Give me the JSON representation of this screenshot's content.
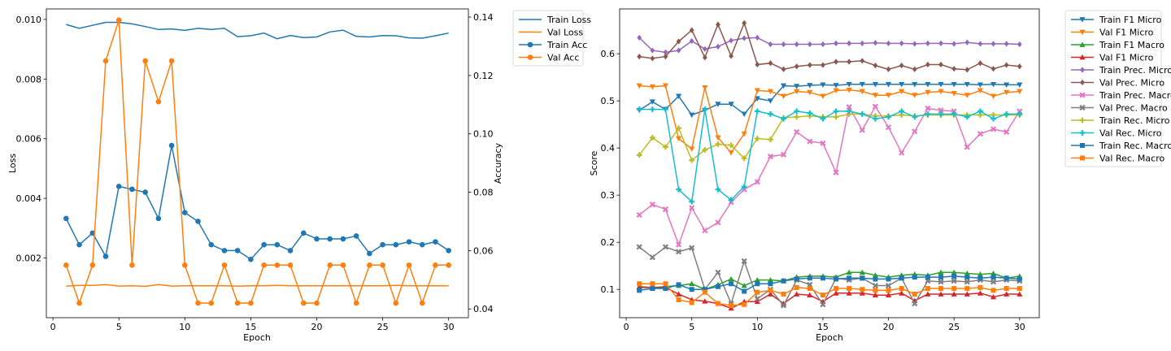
{
  "chart_data": [
    {
      "type": "line",
      "title": "",
      "xlabel": "Epoch",
      "ylabel_left": "Loss",
      "ylabel_right": "Accuracy",
      "xlim": [
        -0.5,
        31.5
      ],
      "ylim_left": [
        0.0,
        0.01035
      ],
      "ylim_right": [
        0.037,
        0.1428
      ],
      "x_ticks": [
        0,
        5,
        10,
        15,
        20,
        25,
        30
      ],
      "y_ticks_left": [
        "0.002",
        "0.004",
        "0.006",
        "0.008",
        "0.010"
      ],
      "y_tick_values_left": [
        0.002,
        0.004,
        0.006,
        0.008,
        0.01
      ],
      "y_ticks_right": [
        "0.04",
        "0.06",
        "0.08",
        "0.10",
        "0.12",
        "0.14"
      ],
      "y_tick_values_right": [
        0.04,
        0.06,
        0.08,
        0.1,
        0.12,
        0.14
      ],
      "legend_position": "outside-right",
      "x": [
        1,
        2,
        3,
        4,
        5,
        6,
        7,
        8,
        9,
        10,
        11,
        12,
        13,
        14,
        15,
        16,
        17,
        18,
        19,
        20,
        21,
        22,
        23,
        24,
        25,
        26,
        27,
        28,
        29,
        30
      ],
      "series": [
        {
          "name": "Train Loss",
          "axis": "left",
          "color": "#1f77b4",
          "marker": "none",
          "values": [
            0.00983,
            0.0097,
            0.0098,
            0.0099,
            0.0099,
            0.00985,
            0.00976,
            0.00966,
            0.00968,
            0.00963,
            0.0097,
            0.00966,
            0.0097,
            0.00942,
            0.00945,
            0.00954,
            0.00935,
            0.00946,
            0.00939,
            0.00941,
            0.00958,
            0.00964,
            0.00943,
            0.00941,
            0.00946,
            0.00945,
            0.00938,
            0.00937,
            0.00945,
            0.00954
          ]
        },
        {
          "name": "Val Loss",
          "axis": "left",
          "color": "#ff7f0e",
          "marker": "none",
          "values": [
            0.00106,
            0.00108,
            0.00108,
            0.00111,
            0.00106,
            0.00107,
            0.00105,
            0.00111,
            0.00106,
            0.00107,
            0.00107,
            0.00107,
            0.00107,
            0.00106,
            0.00107,
            0.00107,
            0.00108,
            0.00107,
            0.00107,
            0.00107,
            0.00107,
            0.00107,
            0.00107,
            0.00107,
            0.00107,
            0.00108,
            0.00107,
            0.00107,
            0.00107,
            0.00107
          ]
        },
        {
          "name": "Train Acc",
          "axis": "right",
          "color": "#1f77b4",
          "marker": "circle",
          "values": [
            0.071,
            0.062,
            0.066,
            0.058,
            0.082,
            0.081,
            0.08,
            0.071,
            0.096,
            0.073,
            0.07,
            0.062,
            0.06,
            0.06,
            0.057,
            0.062,
            0.062,
            0.06,
            0.066,
            0.064,
            0.064,
            0.064,
            0.065,
            0.059,
            0.062,
            0.062,
            0.063,
            0.062,
            0.063,
            0.06
          ]
        },
        {
          "name": "Val Acc",
          "axis": "right",
          "color": "#ff7f0e",
          "marker": "circle",
          "values": [
            0.055,
            0.042,
            0.055,
            0.125,
            0.139,
            0.055,
            0.125,
            0.111,
            0.125,
            0.055,
            0.042,
            0.042,
            0.055,
            0.042,
            0.042,
            0.055,
            0.055,
            0.055,
            0.042,
            0.042,
            0.055,
            0.055,
            0.042,
            0.055,
            0.055,
            0.042,
            0.055,
            0.042,
            0.055,
            0.055
          ]
        }
      ]
    },
    {
      "type": "line",
      "title": "",
      "xlabel": "Epoch",
      "ylabel": "Score",
      "xlim": [
        -0.5,
        31.5
      ],
      "ylim": [
        0.04,
        0.695
      ],
      "x_ticks": [
        0,
        5,
        10,
        15,
        20,
        25,
        30
      ],
      "y_ticks": [
        "0.1",
        "0.2",
        "0.3",
        "0.4",
        "0.5",
        "0.6"
      ],
      "y_tick_values": [
        0.1,
        0.2,
        0.3,
        0.4,
        0.5,
        0.6
      ],
      "legend_position": "outside-right",
      "x": [
        1,
        2,
        3,
        4,
        5,
        6,
        7,
        8,
        9,
        10,
        11,
        12,
        13,
        14,
        15,
        16,
        17,
        18,
        19,
        20,
        21,
        22,
        23,
        24,
        25,
        26,
        27,
        28,
        29,
        30
      ],
      "series": [
        {
          "name": "Train F1 Micro",
          "color": "#1f77b4",
          "marker": "tri-down",
          "values": [
            0.48,
            0.498,
            0.482,
            0.51,
            0.47,
            0.48,
            0.493,
            0.493,
            0.472,
            0.505,
            0.5,
            0.532,
            0.531,
            0.533,
            0.534,
            0.533,
            0.535,
            0.535,
            0.535,
            0.535,
            0.535,
            0.535,
            0.535,
            0.535,
            0.535,
            0.535,
            0.534,
            0.535,
            0.534,
            0.534
          ]
        },
        {
          "name": "Val F1 Micro",
          "color": "#ff7f0e",
          "marker": "tri-down",
          "values": [
            0.532,
            0.53,
            0.532,
            0.42,
            0.398,
            0.528,
            0.422,
            0.39,
            0.43,
            0.522,
            0.52,
            0.51,
            0.52,
            0.518,
            0.51,
            0.522,
            0.523,
            0.52,
            0.512,
            0.512,
            0.52,
            0.512,
            0.518,
            0.52,
            0.516,
            0.512,
            0.522,
            0.51,
            0.518,
            0.52
          ]
        },
        {
          "name": "Train F1 Macro",
          "color": "#2ca02c",
          "marker": "tri-up",
          "values": [
            0.106,
            0.104,
            0.106,
            0.108,
            0.112,
            0.1,
            0.11,
            0.122,
            0.108,
            0.12,
            0.12,
            0.118,
            0.126,
            0.128,
            0.128,
            0.126,
            0.136,
            0.136,
            0.13,
            0.126,
            0.13,
            0.132,
            0.13,
            0.136,
            0.136,
            0.134,
            0.132,
            0.134,
            0.124,
            0.128
          ]
        },
        {
          "name": "Val F1 Micro",
          "color": "#d62728",
          "marker": "tri-up",
          "values": [
            0.104,
            0.104,
            0.104,
            0.09,
            0.078,
            0.075,
            0.07,
            0.06,
            0.074,
            0.074,
            0.09,
            0.07,
            0.09,
            0.088,
            0.074,
            0.092,
            0.092,
            0.092,
            0.088,
            0.088,
            0.092,
            0.076,
            0.09,
            0.09,
            0.09,
            0.09,
            0.092,
            0.084,
            0.09,
            0.09
          ]
        },
        {
          "name": "Train Prec. Micro",
          "color": "#9467bd",
          "marker": "diamond",
          "values": [
            0.634,
            0.607,
            0.603,
            0.607,
            0.627,
            0.61,
            0.615,
            0.628,
            0.633,
            0.634,
            0.62,
            0.62,
            0.62,
            0.62,
            0.62,
            0.622,
            0.622,
            0.622,
            0.623,
            0.622,
            0.622,
            0.621,
            0.622,
            0.622,
            0.621,
            0.624,
            0.621,
            0.621,
            0.621,
            0.62
          ]
        },
        {
          "name": "Val Prec. Micro",
          "color": "#8c564b",
          "marker": "diamond",
          "values": [
            0.594,
            0.59,
            0.594,
            0.626,
            0.65,
            0.592,
            0.662,
            0.595,
            0.665,
            0.577,
            0.58,
            0.567,
            0.573,
            0.576,
            0.576,
            0.583,
            0.583,
            0.585,
            0.575,
            0.567,
            0.575,
            0.567,
            0.577,
            0.577,
            0.568,
            0.566,
            0.58,
            0.568,
            0.576,
            0.573
          ]
        },
        {
          "name": "Train Prec. Macro",
          "color": "#e377c2",
          "marker": "x",
          "values": [
            0.258,
            0.28,
            0.27,
            0.195,
            0.273,
            0.225,
            0.242,
            0.285,
            0.312,
            0.328,
            0.382,
            0.386,
            0.434,
            0.414,
            0.41,
            0.348,
            0.487,
            0.438,
            0.488,
            0.444,
            0.39,
            0.435,
            0.484,
            0.48,
            0.478,
            0.402,
            0.43,
            0.44,
            0.434,
            0.478
          ]
        },
        {
          "name": "Val Prec. Macro",
          "color": "#7f7f7f",
          "marker": "x",
          "values": [
            0.19,
            0.168,
            0.19,
            0.18,
            0.188,
            0.1,
            0.136,
            0.07,
            0.16,
            0.08,
            0.1,
            0.066,
            0.12,
            0.11,
            0.068,
            0.124,
            0.12,
            0.124,
            0.108,
            0.108,
            0.124,
            0.07,
            0.118,
            0.116,
            0.118,
            0.116,
            0.12,
            0.116,
            0.12,
            0.118
          ]
        },
        {
          "name": "Train Rec. Micro",
          "color": "#bcbd22",
          "marker": "plus",
          "values": [
            0.385,
            0.422,
            0.402,
            0.442,
            0.374,
            0.396,
            0.408,
            0.406,
            0.378,
            0.42,
            0.418,
            0.464,
            0.466,
            0.468,
            0.466,
            0.466,
            0.472,
            0.472,
            0.468,
            0.468,
            0.47,
            0.468,
            0.47,
            0.47,
            0.47,
            0.47,
            0.47,
            0.47,
            0.47,
            0.47
          ]
        },
        {
          "name": "Val Rec. Micro",
          "color": "#17becf",
          "marker": "plus",
          "values": [
            0.482,
            0.482,
            0.482,
            0.312,
            0.286,
            0.482,
            0.312,
            0.29,
            0.318,
            0.478,
            0.472,
            0.462,
            0.478,
            0.474,
            0.462,
            0.478,
            0.478,
            0.472,
            0.462,
            0.466,
            0.478,
            0.466,
            0.472,
            0.472,
            0.472,
            0.466,
            0.478,
            0.462,
            0.472,
            0.472
          ]
        },
        {
          "name": "Train Rec. Macro",
          "color": "#1f77b4",
          "marker": "square",
          "values": [
            0.098,
            0.102,
            0.102,
            0.11,
            0.1,
            0.1,
            0.106,
            0.112,
            0.096,
            0.112,
            0.112,
            0.118,
            0.122,
            0.124,
            0.124,
            0.122,
            0.124,
            0.124,
            0.122,
            0.122,
            0.124,
            0.126,
            0.126,
            0.126,
            0.128,
            0.126,
            0.124,
            0.126,
            0.124,
            0.122
          ]
        },
        {
          "name": "Val Rec. Macro",
          "color": "#ff7f0e",
          "marker": "square",
          "values": [
            0.112,
            0.112,
            0.112,
            0.078,
            0.072,
            0.094,
            0.07,
            0.066,
            0.068,
            0.094,
            0.098,
            0.09,
            0.104,
            0.102,
            0.088,
            0.102,
            0.102,
            0.1,
            0.098,
            0.098,
            0.102,
            0.09,
            0.102,
            0.102,
            0.102,
            0.102,
            0.104,
            0.098,
            0.102,
            0.102
          ]
        }
      ]
    }
  ]
}
